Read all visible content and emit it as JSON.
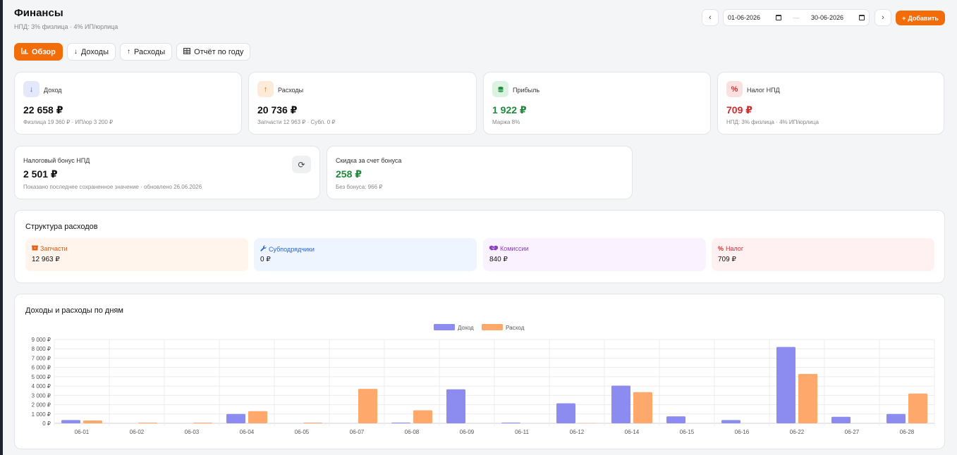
{
  "header": {
    "title": "Финансы",
    "subtitle": "НПД: 3% физлица · 4% ИП/юрлица",
    "date_from": "01-06-2026",
    "date_to": "30-06-2026",
    "add_label": "Добавить"
  },
  "tabs": [
    {
      "label": "Обзор",
      "icon": "bar-chart-icon"
    },
    {
      "label": "Доходы",
      "icon": "arrow-down-icon"
    },
    {
      "label": "Расходы",
      "icon": "arrow-up-icon"
    },
    {
      "label": "Отчёт по году",
      "icon": "table-icon"
    }
  ],
  "stats": [
    {
      "label": "Доход",
      "value": "22 658 ₽",
      "note": "Физлица 19 360 ₽ · ИП/юр 3 200 ₽",
      "icon": "arrow-down-icon"
    },
    {
      "label": "Расходы",
      "value": "20 736 ₽",
      "note": "Запчасти 12 963 ₽ · Субп. 0 ₽",
      "icon": "arrow-up-icon"
    },
    {
      "label": "Прибыль",
      "value": "1 922 ₽",
      "note": "Маржа 8%",
      "icon": "coins-icon"
    },
    {
      "label": "Налог НПД",
      "value": "709 ₽",
      "note": "НПД: 3% физлица · 4% ИП/юрлица",
      "icon": "percent-icon"
    }
  ],
  "bonus": {
    "label": "Налоговый бонус НПД",
    "value": "2 501 ₽",
    "note": "Показано последнее сохраненное значение · обновлено 26.06.2026"
  },
  "discount": {
    "label": "Скидка за счет бонуса",
    "value": "258 ₽",
    "note": "Без бонуса: 966 ₽"
  },
  "structure": {
    "title": "Структура расходов",
    "items": [
      {
        "label": "Запчасти",
        "value": "12 963 ₽",
        "icon": "box-icon"
      },
      {
        "label": "Субподрядчики",
        "value": "0 ₽",
        "icon": "wrench-icon"
      },
      {
        "label": "Комиссии",
        "value": "840 ₽",
        "icon": "handshake-icon"
      },
      {
        "label": "Налог",
        "value": "709 ₽",
        "icon": "percent-icon"
      }
    ]
  },
  "colors": {
    "accent": "#f26c0a",
    "income": "#8c8cf0",
    "expense": "#ffa86b",
    "profit": "#1f8a3c",
    "tax": "#d42a2a"
  },
  "chart_data": {
    "type": "bar",
    "title": "Доходы и расходы по дням",
    "categories": [
      "06-01",
      "06-02",
      "06-03",
      "06-04",
      "06-05",
      "06-07",
      "06-08",
      "06-09",
      "06-11",
      "06-12",
      "06-14",
      "06-15",
      "06-16",
      "06-22",
      "06-27",
      "06-28"
    ],
    "series": [
      {
        "name": "Доход",
        "values": [
          350,
          0,
          0,
          1000,
          0,
          0,
          80,
          3650,
          80,
          2150,
          4050,
          750,
          350,
          8200,
          700,
          1000
        ]
      },
      {
        "name": "Расход",
        "values": [
          300,
          80,
          80,
          1300,
          80,
          3700,
          1400,
          0,
          0,
          30,
          3350,
          0,
          0,
          5300,
          0,
          3200
        ]
      }
    ],
    "yticks": [
      "0 ₽",
      "1 000 ₽",
      "2 000 ₽",
      "3 000 ₽",
      "4 000 ₽",
      "5 000 ₽",
      "6 000 ₽",
      "7 000 ₽",
      "8 000 ₽",
      "9 000 ₽"
    ],
    "ylim": [
      0,
      9000
    ],
    "grid": true,
    "legend": "top"
  }
}
